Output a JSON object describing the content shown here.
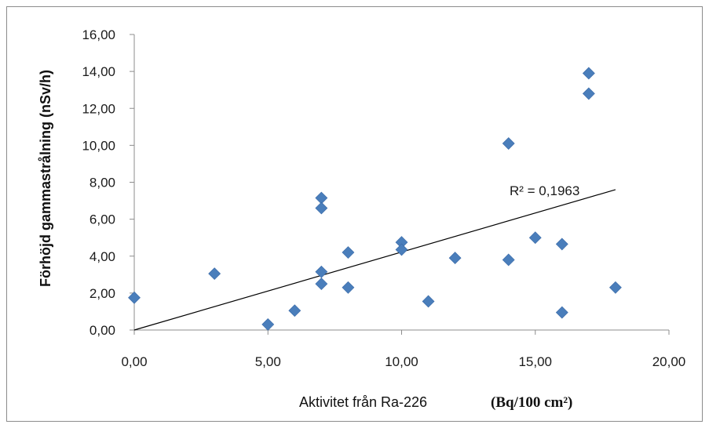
{
  "chart_data": {
    "type": "scatter",
    "xlabel": "Aktivitet från Ra-226",
    "xlabel_unit": "(Bq/100 cm²)",
    "ylabel": "Förhöjd gammastrålning (nSv/h)",
    "xlim": [
      0,
      20
    ],
    "ylim": [
      0,
      16
    ],
    "x_ticks": [
      "0,00",
      "5,00",
      "10,00",
      "15,00",
      "20,00"
    ],
    "y_ticks": [
      "0,00",
      "2,00",
      "4,00",
      "6,00",
      "8,00",
      "10,00",
      "12,00",
      "14,00",
      "16,00"
    ],
    "x_tick_values": [
      0,
      5,
      10,
      15,
      20
    ],
    "y_tick_values": [
      0,
      2,
      4,
      6,
      8,
      10,
      12,
      14,
      16
    ],
    "grid": false,
    "legend": "none",
    "marker": "diamond",
    "marker_color": "#4a7ebb",
    "series": [
      {
        "points": [
          [
            0,
            1.75
          ],
          [
            3,
            3.05
          ],
          [
            5,
            0.3
          ],
          [
            6,
            1.05
          ],
          [
            7,
            7.15
          ],
          [
            7,
            6.6
          ],
          [
            7,
            3.15
          ],
          [
            7,
            2.5
          ],
          [
            8,
            4.2
          ],
          [
            8,
            2.3
          ],
          [
            10,
            4.75
          ],
          [
            10,
            4.35
          ],
          [
            11,
            1.55
          ],
          [
            12,
            3.9
          ],
          [
            14,
            10.1
          ],
          [
            14,
            3.8
          ],
          [
            15,
            5.0
          ],
          [
            16,
            4.65
          ],
          [
            16,
            0.95
          ],
          [
            17,
            13.9
          ],
          [
            17,
            12.8
          ],
          [
            18,
            2.3
          ]
        ]
      }
    ],
    "trendline": {
      "type": "linear",
      "x_range": [
        0,
        18
      ],
      "y_range": [
        0,
        7.6
      ],
      "annotation": "R² = 0,1963"
    }
  }
}
